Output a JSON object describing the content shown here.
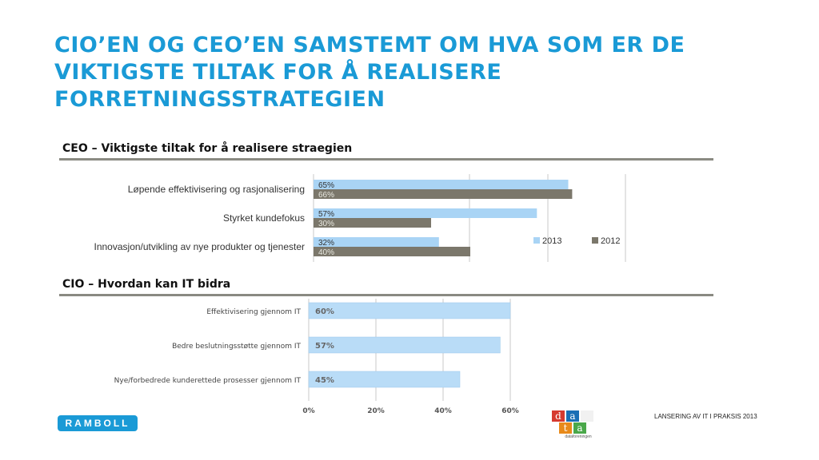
{
  "title": "CIO’EN OG CEO’EN SAMSTEMT OM HVA SOM ER DE VIKTIGSTE TILTAK FOR Å REALISERE FORRETNINGSSTRATEGIEN",
  "sections": {
    "ceo_heading": "CEO – Viktigste tiltak for å realisere straegien",
    "cio_heading": "CIO – Hvordan kan IT bidra"
  },
  "colors": {
    "title": "#1a9ad6",
    "series_2013": "#a9d4f5",
    "series_2012": "#7b776b",
    "cio_bar": "#b9dcf7"
  },
  "footer": {
    "brand": "RAMBOLL",
    "caption": "LANSERING AV IT I PRAKSIS 2013",
    "logo_letters": [
      "d",
      "a",
      "t",
      "a"
    ],
    "logo_sub": "dataforeningen"
  },
  "chart_data": [
    {
      "type": "bar",
      "orientation": "horizontal",
      "categories": [
        "Løpende effektivisering og rasjonalisering",
        "Styrket kundefokus",
        "Innovasjon/utvikling av nye produkter og tjenester"
      ],
      "series": [
        {
          "name": "2013",
          "values": [
            65,
            57,
            32
          ],
          "labels": [
            "65%",
            "57%",
            "32%"
          ]
        },
        {
          "name": "2012",
          "values": [
            66,
            30,
            40
          ],
          "labels": [
            "66%",
            "30%",
            "40%"
          ]
        }
      ],
      "xlim": [
        0,
        100
      ],
      "grid": true,
      "legend": "right"
    },
    {
      "type": "bar",
      "orientation": "horizontal",
      "categories": [
        "Effektivisering gjennom IT",
        "Bedre beslutningsstøtte gjennom IT",
        "Nye/forbedrede kunderettede prosesser gjennom IT"
      ],
      "values": [
        60,
        57,
        45
      ],
      "labels": [
        "60%",
        "57%",
        "45%"
      ],
      "xticks": [
        "0%",
        "20%",
        "40%",
        "60%"
      ],
      "xlim": [
        0,
        63
      ],
      "grid": true
    }
  ]
}
